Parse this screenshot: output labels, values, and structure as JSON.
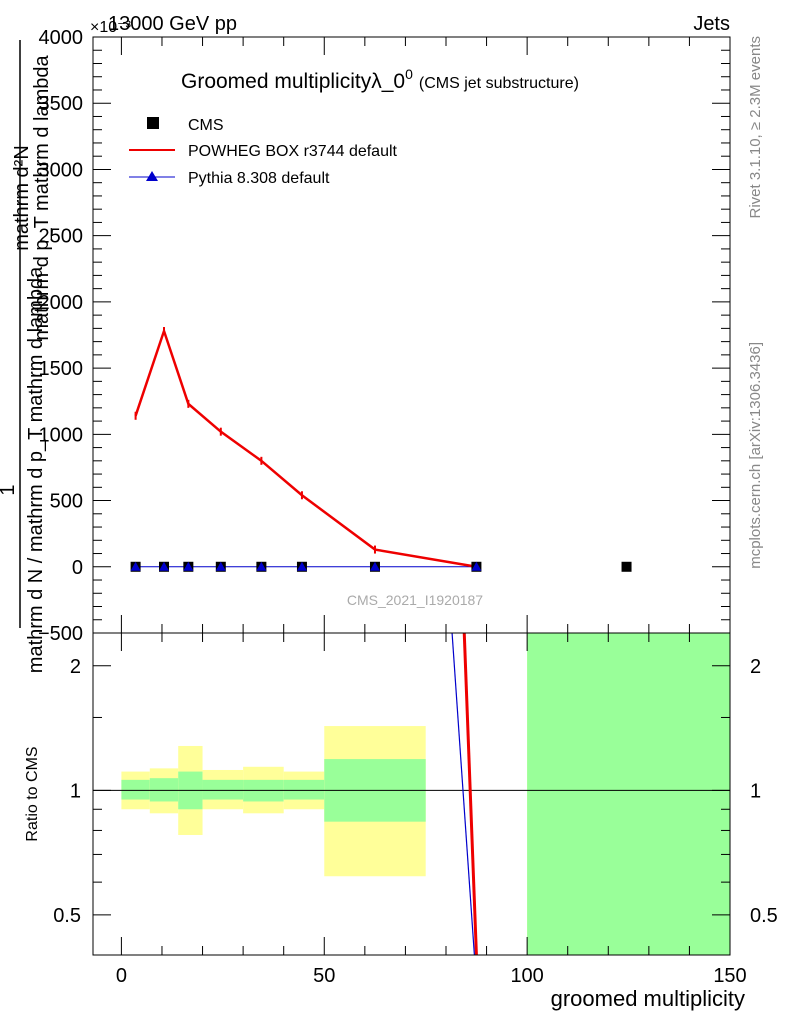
{
  "header": {
    "energy": "13000 GeV pp",
    "category": "Jets",
    "exponent_label": "×10⁻³"
  },
  "side_labels": {
    "rivet": "Rivet 3.1.10, ≥ 2.3M events",
    "mcplots": "mcplots.cern.ch [arXiv:1306.3436]"
  },
  "chart_data": [
    {
      "type": "line",
      "title_main": "Groomed multiplicityλ_0",
      "title_sup": "0",
      "title_sub": "(CMS jet substructure)",
      "watermark": "CMS_2021_I1920187",
      "ylabel_top": "mathrm d²N",
      "ylabel_mid": "mathrm d p_T mathrm d lambda",
      "ylabel_bottom": "mathrm d N / mathrm d p_T mathrm d lambda",
      "ylabel_one": "1",
      "xlim": [
        -7,
        150
      ],
      "ylim": [
        -500,
        4000
      ],
      "y_ticks": [
        {
          "value": -500,
          "label": "−500"
        },
        {
          "value": 0,
          "label": "0"
        },
        {
          "value": 500,
          "label": "500"
        },
        {
          "value": 1000,
          "label": "1000"
        },
        {
          "value": 1500,
          "label": "1500"
        },
        {
          "value": 2000,
          "label": "2000"
        },
        {
          "value": 2500,
          "label": "2500"
        },
        {
          "value": 3000,
          "label": "3000"
        },
        {
          "value": 3500,
          "label": "3500"
        },
        {
          "value": 4000,
          "label": "4000"
        }
      ],
      "legend": [
        {
          "label": "CMS",
          "marker": "square",
          "color": "#000000"
        },
        {
          "label": "POWHEG BOX r3744 default",
          "marker": "line",
          "color": "#ee0000"
        },
        {
          "label": "Pythia 8.308 default",
          "marker": "triangle",
          "color": "#0000cc"
        }
      ],
      "legend_position": "top-left",
      "series": [
        {
          "name": "CMS",
          "color": "#000000",
          "x": [
            3.5,
            10.5,
            16.5,
            24.5,
            34.5,
            44.5,
            62.5,
            87.5,
            124.5
          ],
          "y": [
            0,
            0,
            0,
            0,
            0,
            0,
            0,
            0,
            0
          ]
        },
        {
          "name": "POWHEG BOX r3744 default",
          "color": "#ee0000",
          "x": [
            3.5,
            10.5,
            16.5,
            24.5,
            34.5,
            44.5,
            62.5,
            87.5
          ],
          "y": [
            1140,
            1780,
            1230,
            1020,
            800,
            540,
            130,
            0
          ]
        },
        {
          "name": "Pythia 8.308 default",
          "color": "#0000cc",
          "x": [
            3.5,
            10.5,
            16.5,
            24.5,
            34.5,
            44.5,
            62.5,
            87.5
          ],
          "y": [
            0,
            0,
            0,
            0,
            0,
            0,
            0,
            0
          ]
        }
      ]
    },
    {
      "type": "line",
      "ylabel": "Ratio to CMS",
      "xlabel": "groomed multiplicity",
      "xlim": [
        -7,
        150
      ],
      "ylim": [
        0.4,
        2.4
      ],
      "y_scale": "log",
      "y_ticks": [
        {
          "value": 0.5,
          "label": "0.5"
        },
        {
          "value": 1,
          "label": "1"
        },
        {
          "value": 2,
          "label": "2"
        }
      ],
      "x_ticks": [
        {
          "value": 0,
          "label": "0"
        },
        {
          "value": 50,
          "label": "50"
        },
        {
          "value": 100,
          "label": "100"
        },
        {
          "value": 150,
          "label": "150"
        }
      ],
      "bands": [
        {
          "x0": 0,
          "x1": 7,
          "stat_lo": 0.95,
          "stat_hi": 1.06,
          "tot_lo": 0.9,
          "tot_hi": 1.11
        },
        {
          "x0": 7,
          "x1": 14,
          "stat_lo": 0.94,
          "stat_hi": 1.07,
          "tot_lo": 0.88,
          "tot_hi": 1.13
        },
        {
          "x0": 14,
          "x1": 20,
          "stat_lo": 0.9,
          "stat_hi": 1.11,
          "tot_lo": 0.78,
          "tot_hi": 1.28
        },
        {
          "x0": 20,
          "x1": 30,
          "stat_lo": 0.95,
          "stat_hi": 1.06,
          "tot_lo": 0.9,
          "tot_hi": 1.12
        },
        {
          "x0": 30,
          "x1": 40,
          "stat_lo": 0.94,
          "stat_hi": 1.06,
          "tot_lo": 0.88,
          "tot_hi": 1.14
        },
        {
          "x0": 40,
          "x1": 50,
          "stat_lo": 0.95,
          "stat_hi": 1.06,
          "tot_lo": 0.9,
          "tot_hi": 1.11
        },
        {
          "x0": 50,
          "x1": 75,
          "stat_lo": 0.84,
          "stat_hi": 1.19,
          "tot_lo": 0.62,
          "tot_hi": 1.43
        },
        {
          "x0": 100,
          "x1": 150,
          "stat_lo": 0.1,
          "stat_hi": 10,
          "tot_lo": 0.1,
          "tot_hi": 10
        }
      ],
      "band_colors": {
        "stat": "#99ff99",
        "total": "#ffff99"
      },
      "ratio_lines": [
        {
          "name": "POWHEG BOX r3744 default",
          "color": "#ee0000",
          "x": [
            84.5,
            87.5
          ],
          "y": [
            2.4,
            0.4
          ]
        },
        {
          "name": "Pythia 8.308 default",
          "color": "#0000cc",
          "x": [
            81.5,
            87.0
          ],
          "y": [
            2.4,
            0.4
          ]
        }
      ]
    }
  ]
}
